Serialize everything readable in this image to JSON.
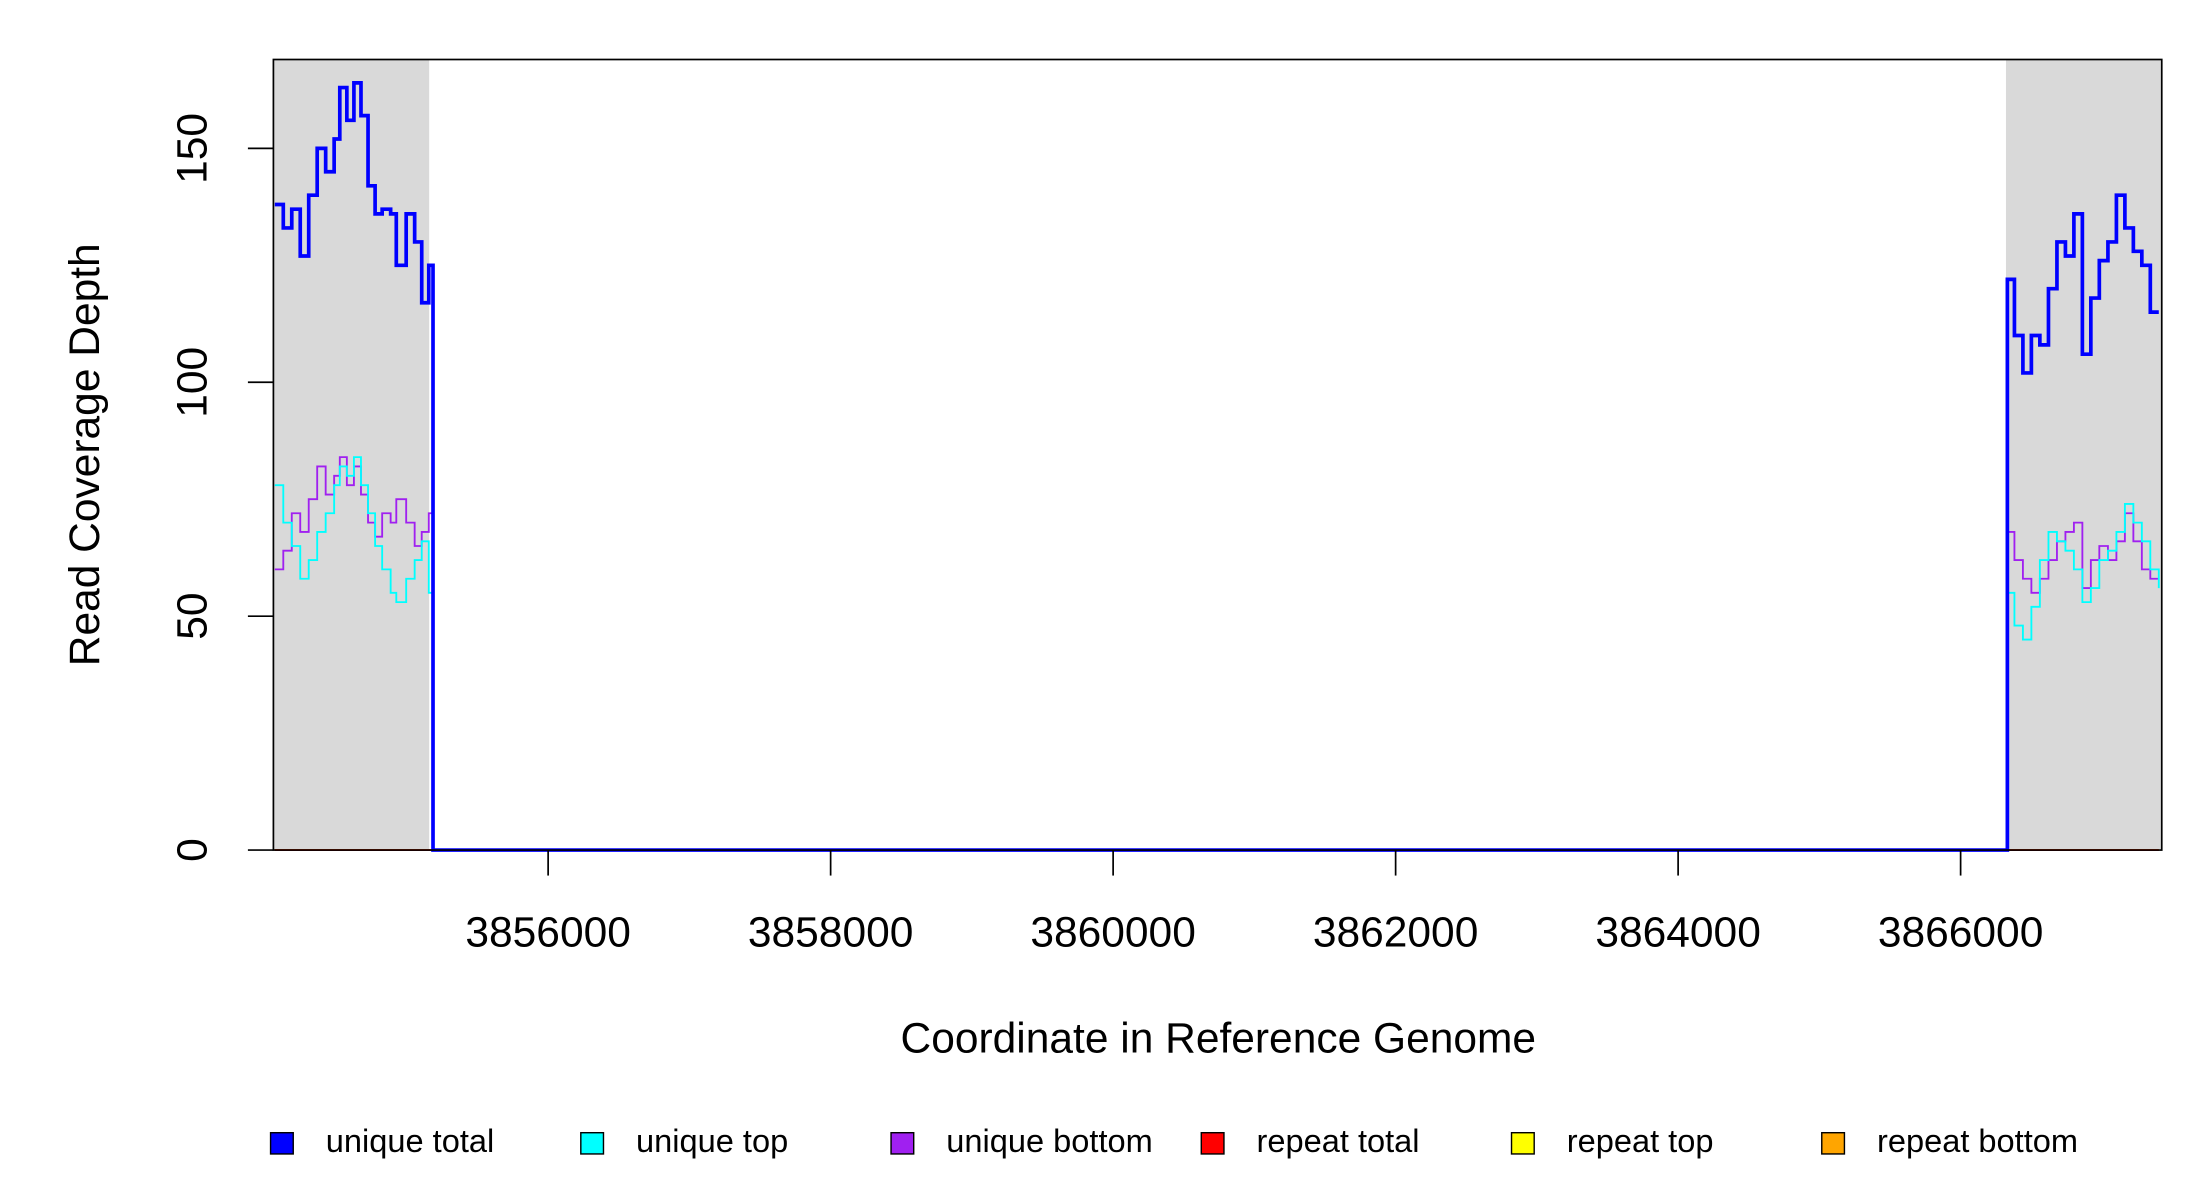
{
  "chart_data": {
    "type": "step",
    "x_label": "Coordinate in Reference Genome",
    "y_label": "Read Coverage Depth",
    "xlim": [
      3854055,
      3867424
    ],
    "ylim": [
      0,
      169
    ],
    "xticks": [
      3856000,
      3858000,
      3860000,
      3862000,
      3864000,
      3866000
    ],
    "yticks": [
      0,
      50,
      100,
      150
    ],
    "shade_color": "#d9d9d9",
    "shaded_regions": [
      [
        3854055,
        3855158
      ],
      [
        3866321,
        3867424
      ]
    ],
    "x": [
      3854065,
      3854125,
      3854185,
      3854245,
      3854305,
      3854365,
      3854425,
      3854485,
      3854525,
      3854575,
      3854625,
      3854675,
      3854725,
      3854775,
      3854825,
      3854885,
      3854925,
      3854995,
      3855055,
      3855105,
      3855155,
      3855185,
      3866320,
      3866331,
      3866381,
      3866441,
      3866501,
      3866561,
      3866622,
      3866682,
      3866742,
      3866802,
      3866862,
      3866922,
      3866982,
      3867043,
      3867103,
      3867163,
      3867223,
      3867283,
      3867343,
      3867403
    ],
    "series": [
      {
        "name": "unique total",
        "color": "#0000ff",
        "values": [
          138,
          133,
          137,
          127,
          140,
          150,
          145,
          152,
          163,
          156,
          164,
          157,
          142,
          136,
          137,
          136,
          125,
          136,
          130,
          117,
          125,
          0,
          0,
          122,
          110,
          102,
          110,
          108,
          120,
          130,
          127,
          136,
          106,
          118,
          126,
          130,
          140,
          133,
          128,
          125,
          115,
          115
        ]
      },
      {
        "name": "unique top",
        "color": "#00ffff",
        "values": [
          78,
          70,
          65,
          58,
          62,
          68,
          72,
          78,
          82,
          80,
          84,
          78,
          72,
          65,
          60,
          55,
          53,
          58,
          62,
          66,
          55,
          0,
          0,
          55,
          48,
          45,
          52,
          62,
          68,
          66,
          64,
          60,
          53,
          56,
          62,
          64,
          68,
          74,
          70,
          66,
          60,
          56
        ]
      },
      {
        "name": "unique bottom",
        "color": "#a020f0",
        "values": [
          60,
          64,
          72,
          68,
          75,
          82,
          76,
          80,
          84,
          78,
          82,
          76,
          70,
          67,
          72,
          70,
          75,
          70,
          65,
          68,
          72,
          0,
          0,
          68,
          62,
          58,
          55,
          58,
          62,
          66,
          68,
          70,
          56,
          62,
          65,
          62,
          66,
          72,
          66,
          60,
          58,
          58
        ]
      },
      {
        "name": "repeat total",
        "color": "#ff0000",
        "values": [
          0,
          0,
          0,
          0,
          0,
          0,
          0,
          0,
          0,
          0,
          0,
          0,
          0,
          0,
          0,
          0,
          0,
          0,
          0,
          0,
          0,
          0,
          0,
          0,
          0,
          0,
          0,
          0,
          0,
          0,
          0,
          0,
          0,
          0,
          0,
          0,
          0,
          0,
          0,
          0,
          0,
          0
        ]
      },
      {
        "name": "repeat top",
        "color": "#ffff00",
        "values": [
          0,
          0,
          0,
          0,
          0,
          0,
          0,
          0,
          0,
          0,
          0,
          0,
          0,
          0,
          0,
          0,
          0,
          0,
          0,
          0,
          0,
          0,
          0,
          0,
          0,
          0,
          0,
          0,
          0,
          0,
          0,
          0,
          0,
          0,
          0,
          0,
          0,
          0,
          0,
          0,
          0,
          0
        ]
      },
      {
        "name": "repeat bottom",
        "color": "#ffa500",
        "values": [
          0,
          0,
          0,
          0,
          0,
          0,
          0,
          0,
          0,
          0,
          0,
          0,
          0,
          0,
          0,
          0,
          0,
          0,
          0,
          0,
          0,
          0,
          0,
          0,
          0,
          0,
          0,
          0,
          0,
          0,
          0,
          0,
          0,
          0,
          0,
          0,
          0,
          0,
          0,
          0,
          0,
          0
        ]
      }
    ]
  }
}
